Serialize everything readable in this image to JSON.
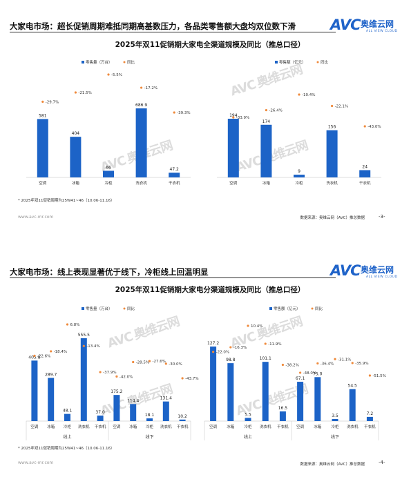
{
  "brand": {
    "logo_text": "AVC",
    "logo_cn": "奥维云网",
    "logo_en": "ALL VIEW CLOUD"
  },
  "slide1": {
    "heading": "大家电市场：超长促销周期难抵同期高基数压力，各品类零售额大盘均双位数下滑",
    "chart_title": "2025年双11促销期大家电全渠道规模及同比（推总口径）",
    "note": "* 2025年双11促销周期为25W41~46（10.06-11.16）",
    "site": "www.avc-mr.com",
    "source": "数据来源：奥维云网（AVC）推总数据",
    "page": "-3-"
  },
  "slide2": {
    "heading": "大家电市场：线上表现显著优于线下，冷柜线上回温明显",
    "chart_title": "2025年双11促销期大家电分渠道规模及同比（推总口径）",
    "note": "* 2025年双11促销周期为25W41~46（10.06-11.16）",
    "site": "www.avc-mr.com",
    "source": "数据来源：奥维云网（AVC）推总数据",
    "page": "-4-"
  },
  "colors": {
    "bar": "#1c63c7",
    "yoy": "#ef8a3c",
    "brand": "#1f63c9"
  },
  "chart_data": [
    {
      "type": "bar",
      "categories": [
        "空调",
        "冰箱",
        "冷柜",
        "洗衣机",
        "干衣机"
      ],
      "series": [
        {
          "name": "零售量（万台）",
          "values": [
            581,
            404,
            66,
            686.9,
            47.2
          ],
          "labels": [
            "581",
            "404",
            "66",
            "686.9",
            "47.2"
          ]
        },
        {
          "name": "同比",
          "values": [
            -29.7,
            -21.5,
            -5.5,
            -17.2,
            -39.3
          ],
          "labels": [
            "-29.7%",
            "-21.5%",
            "-5.5%",
            "-17.2%",
            "-39.3%"
          ]
        }
      ],
      "legend": "top"
    },
    {
      "type": "bar",
      "categories": [
        "空调",
        "冰箱",
        "冷柜",
        "洗衣机",
        "干衣机"
      ],
      "series": [
        {
          "name": "零售额（亿元）",
          "values": [
            194,
            174,
            9,
            156,
            24
          ],
          "labels": [
            "194",
            "174",
            "9",
            "156",
            "24"
          ]
        },
        {
          "name": "同比",
          "values": [
            -33.9,
            -26.4,
            -10.4,
            -22.1,
            -43.0
          ],
          "labels": [
            "-33.9%",
            "-26.4%",
            "-10.4%",
            "-22.1%",
            "-43.0%"
          ]
        }
      ],
      "legend": "top"
    },
    {
      "type": "bar",
      "groups": [
        "线上",
        "线下"
      ],
      "categories": [
        "空调",
        "冰箱",
        "冷柜",
        "洗衣机",
        "干衣机",
        "空调",
        "冰箱",
        "冷柜",
        "洗衣机",
        "干衣机"
      ],
      "series": [
        {
          "name": "零售量（万台）",
          "values": [
            405.8,
            289.7,
            48.1,
            555.5,
            37.0,
            175.2,
            114.4,
            18.1,
            131.4,
            10.2
          ],
          "labels": [
            "405.8",
            "289.7",
            "48.1",
            "555.5",
            "37.0",
            "175.2",
            "114.4",
            "18.1",
            "131.4",
            "10.2"
          ]
        },
        {
          "name": "同比",
          "values": [
            -22.6,
            -18.4,
            6.8,
            -13.4,
            -37.9,
            -42.0,
            -28.5,
            -27.6,
            -30.0,
            -43.7
          ],
          "labels": [
            "-22.6%",
            "-18.4%",
            "6.8%",
            "-13.4%",
            "-37.9%",
            "-42.0%",
            "-28.5%",
            "-27.6%",
            "-30.0%",
            "-43.7%"
          ]
        }
      ],
      "legend": "top"
    },
    {
      "type": "bar",
      "groups": [
        "线上",
        "线下"
      ],
      "categories": [
        "空调",
        "冰箱",
        "冷柜",
        "洗衣机",
        "干衣机",
        "空调",
        "冰箱",
        "冷柜",
        "洗衣机",
        "干衣机"
      ],
      "series": [
        {
          "name": "零售额（亿元）",
          "values": [
            127.2,
            98.8,
            5.5,
            101.1,
            16.5,
            67.1,
            75.0,
            3.5,
            54.5,
            7.2
          ],
          "labels": [
            "127.2",
            "98.8",
            "5.5",
            "101.1",
            "16.5",
            "67.1",
            "75.0",
            "3.5",
            "54.5",
            "7.2"
          ]
        },
        {
          "name": "同比",
          "values": [
            -22.0,
            -16.3,
            10.4,
            -11.9,
            -38.2,
            -48.0,
            -36.4,
            -31.1,
            -35.9,
            -51.5
          ],
          "labels": [
            "-22.0%",
            "-16.3%",
            "10.4%",
            "-11.9%",
            "-38.2%",
            "-48.0%",
            "-36.4%",
            "-31.1%",
            "-35.9%",
            "-51.5%"
          ]
        }
      ],
      "legend": "top"
    }
  ]
}
